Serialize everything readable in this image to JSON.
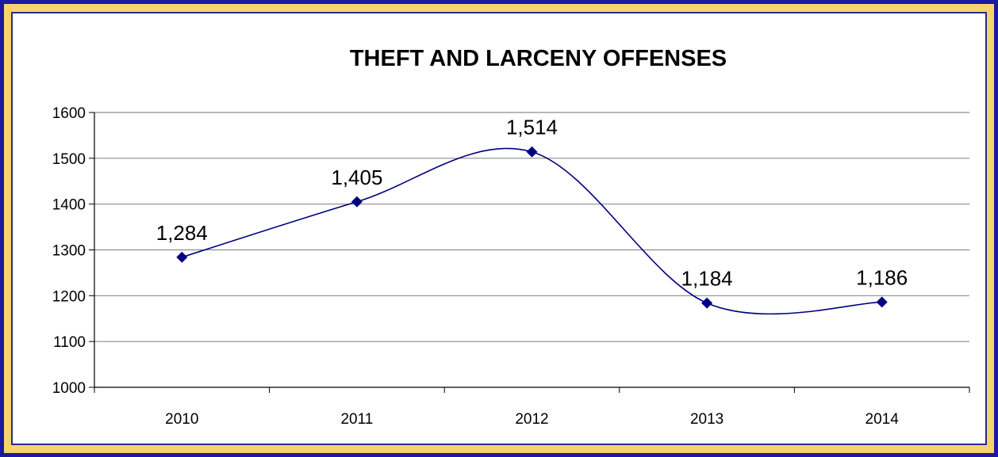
{
  "chart_data": {
    "type": "line",
    "title": "THEFT AND LARCENY OFFENSES",
    "xlabel": "",
    "ylabel": "",
    "categories": [
      "2010",
      "2011",
      "2012",
      "2013",
      "2014"
    ],
    "series": [
      {
        "values": [
          1284,
          1405,
          1514,
          1184,
          1186
        ],
        "data_labels": [
          "1,284",
          "1,405",
          "1,514",
          "1,184",
          "1,186"
        ],
        "color": "#000080",
        "marker": "diamond",
        "smooth": true
      }
    ],
    "ylim": [
      1000,
      1600
    ],
    "yticks": [
      "1000",
      "1100",
      "1200",
      "1300",
      "1400",
      "1500",
      "1600"
    ],
    "grid": true,
    "legend": "none"
  },
  "colors": {
    "outer_border": "#1a1aa0",
    "inner_border": "#f7d46b",
    "gridline": "#8c8c8c"
  }
}
